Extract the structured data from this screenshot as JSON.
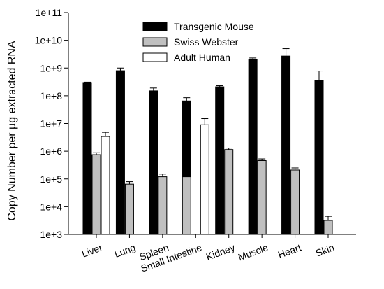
{
  "chart_data": {
    "type": "bar",
    "log_scale_y": true,
    "ylim": [
      1000,
      100000000000
    ],
    "ylabel": "Copy Number per µg extracted RNA",
    "xlabel": "",
    "title": "",
    "y_tick_labels": [
      "1e+3",
      "1e+4",
      "1e+5",
      "1e+6",
      "1e+7",
      "1e+8",
      "1e+9",
      "1e+10",
      "1e+11"
    ],
    "categories": [
      "Liver",
      "Lung",
      "Spleen",
      "Small Intestine",
      "Kidney",
      "Muscle",
      "Heart",
      "Skin"
    ],
    "legend_placement": "top-center",
    "grid": false,
    "series": [
      {
        "name": "Transgenic Mouse",
        "color": "#000000",
        "values": [
          300000000,
          800000000,
          150000000,
          65000000,
          210000000,
          2000000000,
          2700000000,
          350000000
        ],
        "error_upper": [
          310000000,
          1000000000,
          190000000,
          85000000,
          230000000,
          2300000000,
          5000000000,
          780000000
        ]
      },
      {
        "name": "Swiss Webster",
        "color": "#c0c0c0",
        "values": [
          750000,
          65000,
          120000,
          null,
          1150000,
          460000,
          210000,
          3200
        ],
        "error_upper": [
          880000,
          80000,
          150000,
          null,
          1300000,
          530000,
          250000,
          4500
        ]
      },
      {
        "name": "Adult Human",
        "color": "#ffffff",
        "values": [
          3400000,
          null,
          null,
          9000000,
          null,
          null,
          null,
          null
        ],
        "error_upper": [
          4800000,
          null,
          null,
          15000000,
          null,
          null,
          null,
          null
        ]
      }
    ],
    "extra_bars": [
      {
        "category": "Small Intestine",
        "series": "Swiss Webster",
        "value": 120000,
        "error_upper": 160000
      }
    ]
  }
}
